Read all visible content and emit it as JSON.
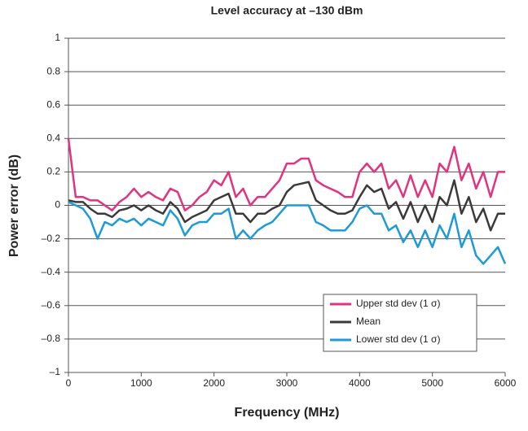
{
  "chart_data": {
    "type": "line",
    "title": "Level accuracy at –130 dBm",
    "xlabel": "Frequency (MHz)",
    "ylabel": "Power error (dB)",
    "x": [
      0,
      100,
      200,
      300,
      400,
      500,
      600,
      700,
      800,
      900,
      1000,
      1100,
      1200,
      1300,
      1400,
      1500,
      1600,
      1700,
      1800,
      1900,
      2000,
      2100,
      2200,
      2300,
      2400,
      2500,
      2600,
      2700,
      2800,
      2900,
      3000,
      3100,
      3200,
      3300,
      3400,
      3500,
      3600,
      3700,
      3800,
      3900,
      4000,
      4100,
      4200,
      4300,
      4400,
      4500,
      4600,
      4700,
      4800,
      4900,
      5000,
      5100,
      5200,
      5300,
      5400,
      5500,
      5600,
      5700,
      5800,
      5900,
      6000
    ],
    "series": [
      {
        "name": "Upper std dev (1 σ)",
        "color": "#e2337f",
        "values": [
          0.4,
          0.05,
          0.05,
          0.03,
          0.03,
          0,
          -0.03,
          0.02,
          0.05,
          0.1,
          0.05,
          0.08,
          0.05,
          0.03,
          0.1,
          0.08,
          -0.03,
          0,
          0.05,
          0.08,
          0.15,
          0.12,
          0.2,
          0.05,
          0.1,
          0,
          0.05,
          0.05,
          0.1,
          0.15,
          0.25,
          0.25,
          0.28,
          0.28,
          0.15,
          0.12,
          0.1,
          0.08,
          0.05,
          0.05,
          0.2,
          0.25,
          0.2,
          0.25,
          0.1,
          0.15,
          0.05,
          0.18,
          0.05,
          0.15,
          0.05,
          0.25,
          0.2,
          0.35,
          0.15,
          0.25,
          0.1,
          0.2,
          0.05,
          0.2,
          0.2
        ]
      },
      {
        "name": "Mean",
        "color": "#3a3a3a",
        "values": [
          0.03,
          0.02,
          0.02,
          -0.02,
          -0.05,
          -0.05,
          -0.07,
          -0.03,
          -0.02,
          0,
          -0.03,
          0,
          -0.03,
          -0.05,
          0.02,
          -0.02,
          -0.1,
          -0.07,
          -0.05,
          -0.03,
          0.03,
          0.05,
          0.07,
          -0.05,
          -0.05,
          -0.1,
          -0.05,
          -0.05,
          -0.02,
          0,
          0.08,
          0.12,
          0.13,
          0.14,
          0.03,
          0,
          -0.03,
          -0.05,
          -0.05,
          -0.03,
          0.05,
          0.12,
          0.08,
          0.1,
          -0.02,
          0.02,
          -0.08,
          0.02,
          -0.1,
          0,
          -0.1,
          0.05,
          0,
          0.15,
          -0.05,
          0.05,
          -0.1,
          -0.02,
          -0.15,
          -0.05,
          -0.05
        ]
      },
      {
        "name": "Lower std dev (1 σ)",
        "color": "#1e9ad6",
        "values": [
          0.02,
          0,
          -0.02,
          -0.08,
          -0.2,
          -0.1,
          -0.12,
          -0.08,
          -0.1,
          -0.08,
          -0.12,
          -0.08,
          -0.1,
          -0.12,
          -0.03,
          -0.08,
          -0.18,
          -0.12,
          -0.1,
          -0.1,
          -0.05,
          -0.05,
          -0.02,
          -0.2,
          -0.15,
          -0.2,
          -0.15,
          -0.12,
          -0.1,
          -0.05,
          0,
          0,
          0,
          0,
          -0.1,
          -0.12,
          -0.15,
          -0.15,
          -0.15,
          -0.1,
          -0.02,
          0,
          -0.05,
          -0.05,
          -0.15,
          -0.12,
          -0.22,
          -0.15,
          -0.25,
          -0.15,
          -0.25,
          -0.12,
          -0.2,
          -0.05,
          -0.25,
          -0.15,
          -0.3,
          -0.35,
          -0.3,
          -0.25,
          -0.35
        ]
      }
    ],
    "xlim": [
      0,
      6000
    ],
    "xticks": [
      0,
      1000,
      2000,
      3000,
      4000,
      5000,
      6000
    ],
    "ylim": [
      -1,
      1
    ],
    "yticks": [
      {
        "value": -1,
        "label": "–1"
      },
      {
        "value": -0.8,
        "label": "–0.8"
      },
      {
        "value": -0.6,
        "label": "–0.6"
      },
      {
        "value": -0.4,
        "label": "–0.4"
      },
      {
        "value": -0.2,
        "label": "–0.2"
      },
      0,
      0.2,
      0.4,
      0.6,
      0.8,
      1
    ],
    "grid": true,
    "legend": "lower right"
  }
}
